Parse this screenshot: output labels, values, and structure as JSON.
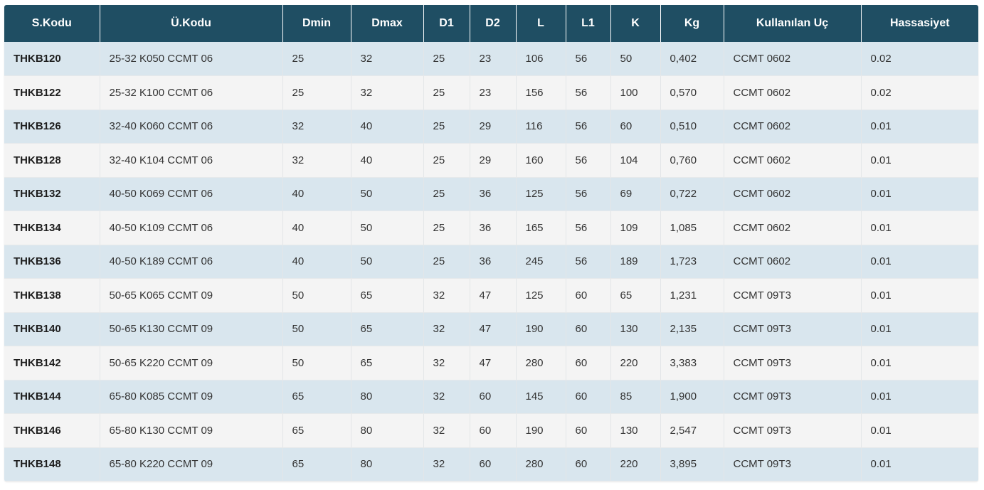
{
  "table": {
    "headers": [
      "S.Kodu",
      "Ü.Kodu",
      "Dmin",
      "Dmax",
      "D1",
      "D2",
      "L",
      "L1",
      "K",
      "Kg",
      "Kullanılan Uç",
      "Hassasiyet"
    ],
    "rows": [
      [
        "THKB120",
        "25-32 K050 CCMT 06",
        "25",
        "32",
        "25",
        "23",
        "106",
        "56",
        "50",
        "0,402",
        "CCMT 0602",
        "0.02"
      ],
      [
        "THKB122",
        "25-32 K100 CCMT 06",
        "25",
        "32",
        "25",
        "23",
        "156",
        "56",
        "100",
        "0,570",
        "CCMT 0602",
        "0.02"
      ],
      [
        "THKB126",
        "32-40 K060 CCMT 06",
        "32",
        "40",
        "25",
        "29",
        "116",
        "56",
        "60",
        "0,510",
        "CCMT 0602",
        "0.01"
      ],
      [
        "THKB128",
        "32-40 K104 CCMT 06",
        "32",
        "40",
        "25",
        "29",
        "160",
        "56",
        "104",
        "0,760",
        "CCMT 0602",
        "0.01"
      ],
      [
        "THKB132",
        "40-50 K069 CCMT 06",
        "40",
        "50",
        "25",
        "36",
        "125",
        "56",
        "69",
        "0,722",
        "CCMT 0602",
        "0.01"
      ],
      [
        "THKB134",
        "40-50 K109 CCMT 06",
        "40",
        "50",
        "25",
        "36",
        "165",
        "56",
        "109",
        "1,085",
        "CCMT 0602",
        "0.01"
      ],
      [
        "THKB136",
        "40-50 K189 CCMT 06",
        "40",
        "50",
        "25",
        "36",
        "245",
        "56",
        "189",
        "1,723",
        "CCMT 0602",
        "0.01"
      ],
      [
        "THKB138",
        "50-65 K065 CCMT 09",
        "50",
        "65",
        "32",
        "47",
        "125",
        "60",
        "65",
        "1,231",
        "CCMT 09T3",
        "0.01"
      ],
      [
        "THKB140",
        "50-65 K130 CCMT 09",
        "50",
        "65",
        "32",
        "47",
        "190",
        "60",
        "130",
        "2,135",
        "CCMT 09T3",
        "0.01"
      ],
      [
        "THKB142",
        "50-65 K220 CCMT 09",
        "50",
        "65",
        "32",
        "47",
        "280",
        "60",
        "220",
        "3,383",
        "CCMT 09T3",
        "0.01"
      ],
      [
        "THKB144",
        "65-80 K085 CCMT 09",
        "65",
        "80",
        "32",
        "60",
        "145",
        "60",
        "85",
        "1,900",
        "CCMT 09T3",
        "0.01"
      ],
      [
        "THKB146",
        "65-80 K130 CCMT 09",
        "65",
        "80",
        "32",
        "60",
        "190",
        "60",
        "130",
        "2,547",
        "CCMT 09T3",
        "0.01"
      ],
      [
        "THKB148",
        "65-80 K220 CCMT 09",
        "65",
        "80",
        "32",
        "60",
        "280",
        "60",
        "220",
        "3,895",
        "CCMT 09T3",
        "0.01"
      ]
    ]
  },
  "colors": {
    "header_bg": "#1f4e63",
    "header_text": "#ffffff",
    "row_odd": "#d9e6ee",
    "row_even": "#f4f4f4",
    "text": "#333333"
  }
}
